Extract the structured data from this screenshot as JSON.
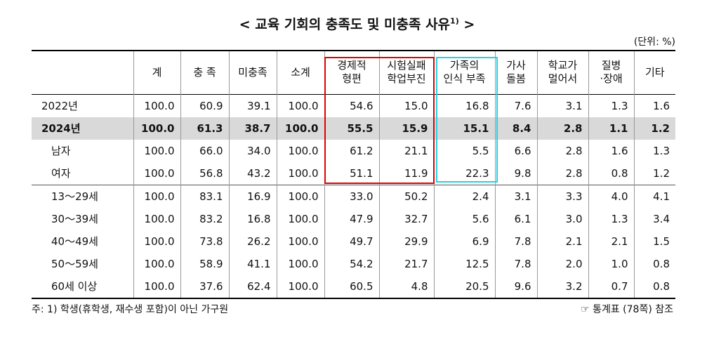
{
  "title": {
    "text": "< 교육 기회의 충족도 및 미충족 사유",
    "sup": "1)",
    "suffix": ">"
  },
  "unit": "(단위: %)",
  "table": {
    "header": [
      [
        "계"
      ],
      [
        "충 족"
      ],
      [
        "미충족"
      ],
      [
        "소계"
      ],
      [
        "경제적",
        "형편"
      ],
      [
        "시험실패",
        "학업부진"
      ],
      [
        "가족의",
        "인식 부족"
      ],
      [
        "가사",
        "돌봄"
      ],
      [
        "학교가",
        "멀어서"
      ],
      [
        "질병",
        "·장애"
      ],
      [
        "기타"
      ]
    ],
    "rows": [
      [
        "2022년",
        "100.0",
        "60.9",
        "39.1",
        "100.0",
        "54.6",
        "15.0",
        "16.8",
        "7.6",
        "3.1",
        "1.3",
        "1.6"
      ],
      [
        "2024년",
        "100.0",
        "61.3",
        "38.7",
        "100.0",
        "55.5",
        "15.9",
        "15.1",
        "8.4",
        "2.8",
        "1.1",
        "1.2"
      ],
      [
        "남자",
        "100.0",
        "66.0",
        "34.0",
        "100.0",
        "61.2",
        "21.1",
        "5.5",
        "6.6",
        "2.8",
        "1.6",
        "1.3"
      ],
      [
        "여자",
        "100.0",
        "56.8",
        "43.2",
        "100.0",
        "51.1",
        "11.9",
        "22.3",
        "9.8",
        "2.8",
        "0.8",
        "1.2"
      ],
      [
        "13～29세",
        "100.0",
        "83.1",
        "16.9",
        "100.0",
        "33.0",
        "50.2",
        "2.4",
        "3.1",
        "3.3",
        "4.0",
        "4.1"
      ],
      [
        "30～39세",
        "100.0",
        "83.2",
        "16.8",
        "100.0",
        "47.9",
        "32.7",
        "5.6",
        "6.1",
        "3.0",
        "1.3",
        "3.4"
      ],
      [
        "40～49세",
        "100.0",
        "73.8",
        "26.2",
        "100.0",
        "49.7",
        "29.9",
        "6.9",
        "7.8",
        "2.1",
        "2.1",
        "1.5"
      ],
      [
        "50～59세",
        "100.0",
        "58.9",
        "41.1",
        "100.0",
        "54.2",
        "21.7",
        "12.5",
        "7.8",
        "2.0",
        "1.0",
        "0.8"
      ],
      [
        "60세 이상",
        "100.0",
        "37.6",
        "62.4",
        "100.0",
        "60.5",
        "4.8",
        "20.5",
        "9.6",
        "3.2",
        "0.7",
        "0.8"
      ]
    ]
  },
  "footnote": "주: 1) 학생(휴학생, 재수생 포함)이 아닌 가구원",
  "reference": "☞ 통계표 (78쪽) 참조"
}
